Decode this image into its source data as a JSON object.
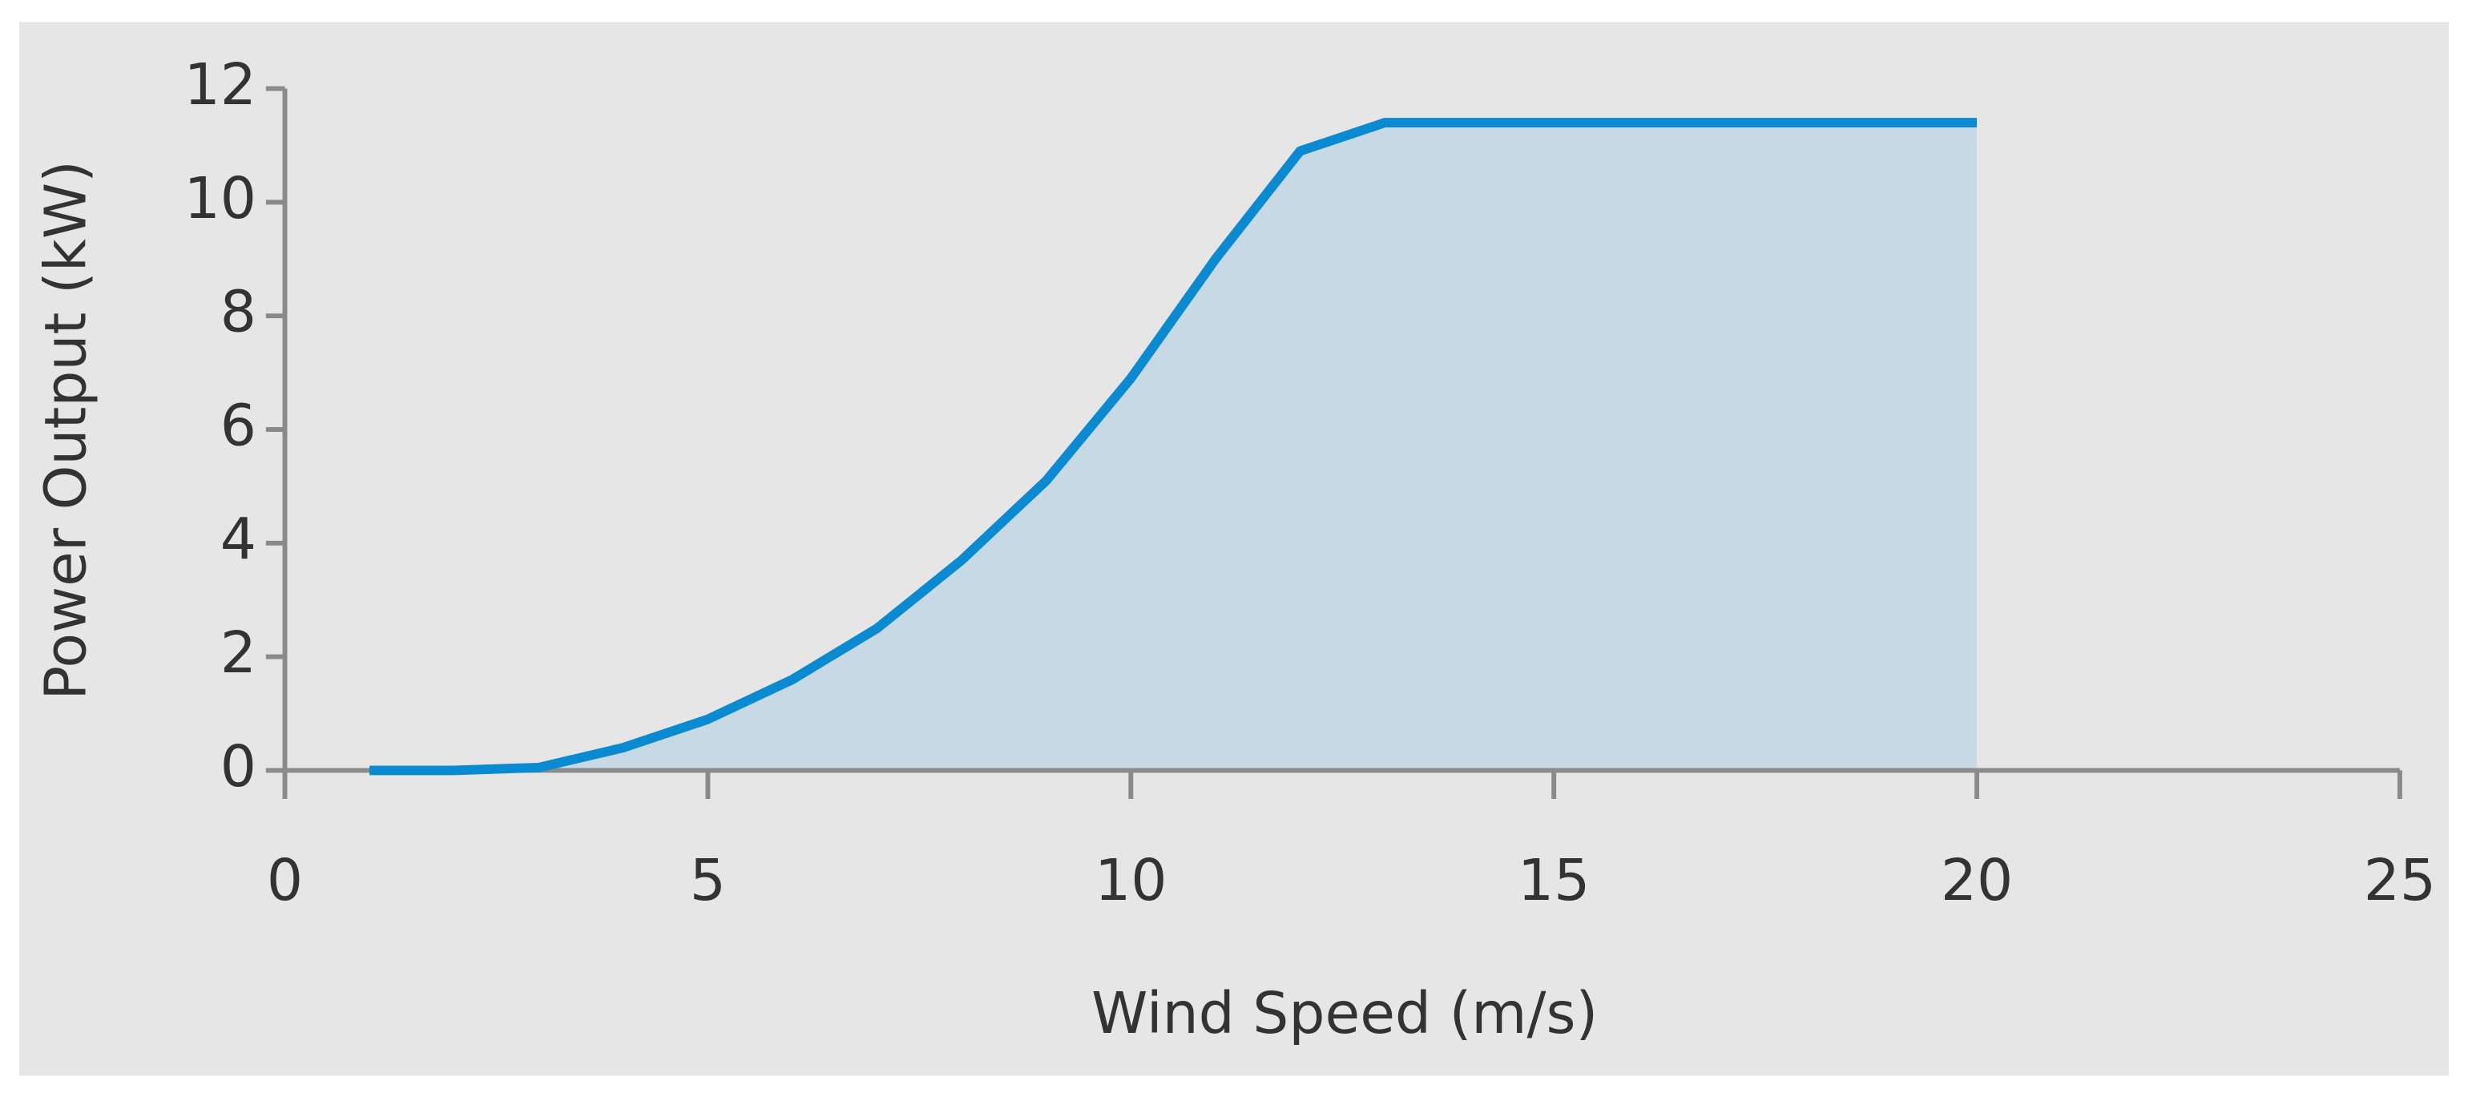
{
  "chart_data": {
    "type": "area",
    "x_label": "Wind Speed (m/s)",
    "y_label": "Power Output (kW)",
    "x": [
      1,
      2,
      3,
      4,
      5,
      6,
      7,
      8,
      9,
      10,
      11,
      12,
      13,
      14,
      15,
      16,
      17,
      18,
      19,
      20
    ],
    "values": [
      0,
      0,
      0.05,
      0.4,
      0.9,
      1.6,
      2.5,
      3.7,
      5.1,
      6.9,
      9.0,
      10.9,
      11.4,
      11.4,
      11.4,
      11.4,
      11.4,
      11.4,
      11.4,
      11.4
    ],
    "color": "#0a8ad0",
    "fill_color": "#c6d9e5",
    "xlim": [
      0,
      25
    ],
    "xticks": [
      0,
      5,
      10,
      15,
      20,
      25
    ],
    "ylim": [
      0,
      12
    ],
    "yticks": [
      0,
      2,
      4,
      6,
      8,
      10,
      12
    ]
  }
}
